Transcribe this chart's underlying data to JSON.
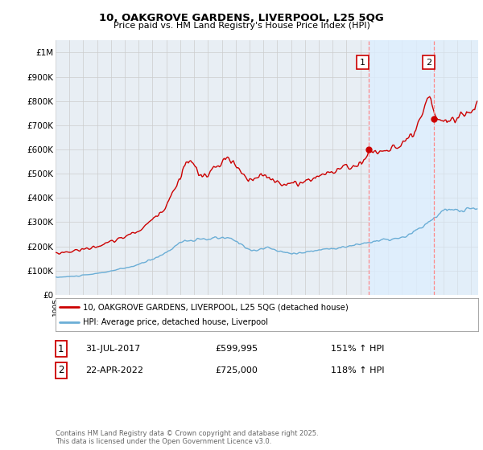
{
  "title_line1": "10, OAKGROVE GARDENS, LIVERPOOL, L25 5QG",
  "title_line2": "Price paid vs. HM Land Registry's House Price Index (HPI)",
  "ylabel_ticks": [
    "£0",
    "£100K",
    "£200K",
    "£300K",
    "£400K",
    "£500K",
    "£600K",
    "£700K",
    "£800K",
    "£900K",
    "£1M"
  ],
  "ytick_values": [
    0,
    100000,
    200000,
    300000,
    400000,
    500000,
    600000,
    700000,
    800000,
    900000,
    1000000
  ],
  "ylim": [
    0,
    1050000
  ],
  "xlim_start": 1995.0,
  "xlim_end": 2025.5,
  "hpi_color": "#6baed6",
  "price_color": "#cc0000",
  "marker1_date": 2017.58,
  "marker2_date": 2022.31,
  "marker1_price": 599995,
  "marker2_price": 725000,
  "vline_color": "#ff8888",
  "shade_color": "#ddeeff",
  "grid_color": "#cccccc",
  "legend_label1": "10, OAKGROVE GARDENS, LIVERPOOL, L25 5QG (detached house)",
  "legend_label2": "HPI: Average price, detached house, Liverpool",
  "annotation1_num": "1",
  "annotation1_date": "31-JUL-2017",
  "annotation1_price": "£599,995",
  "annotation1_hpi": "151% ↑ HPI",
  "annotation2_num": "2",
  "annotation2_date": "22-APR-2022",
  "annotation2_price": "£725,000",
  "annotation2_hpi": "118% ↑ HPI",
  "footer": "Contains HM Land Registry data © Crown copyright and database right 2025.\nThis data is licensed under the Open Government Licence v3.0.",
  "bg_color": "#e8eef4"
}
